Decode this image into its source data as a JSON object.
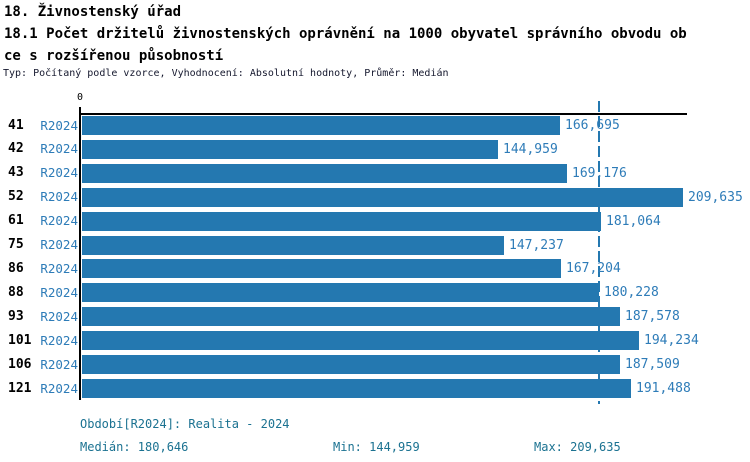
{
  "title": {
    "line1": "18. Živnostenský úřad",
    "line2": "18.1 Počet držitelů živnostenských oprávnění na 1000 obyvatel správního obvodu ob",
    "line3": "ce s rozšířenou působností",
    "meta": "Typ: Počítaný podle vzorce, Vyhodnocení: Absolutní hodnoty, Průměr: Medián"
  },
  "chart_data": {
    "type": "bar",
    "orientation": "horizontal",
    "title": "Počet držitelů živnostenských oprávnění na 1000 obyvatel správního obvodu obce s rozšířenou působností",
    "categories": [
      "41",
      "42",
      "43",
      "52",
      "61",
      "75",
      "86",
      "88",
      "93",
      "101",
      "106",
      "121"
    ],
    "period_label": "R2024",
    "values": [
      166.695,
      144.959,
      169.176,
      209.635,
      181.064,
      147.237,
      167.204,
      180.228,
      187.578,
      194.234,
      187.509,
      191.488
    ],
    "value_labels": [
      "166,695",
      "144,959",
      "169,176",
      "209,635",
      "181,064",
      "147,237",
      "167,204",
      "180,228",
      "187,578",
      "194,234",
      "187,509",
      "191,488"
    ],
    "xlim": [
      0,
      209.635
    ],
    "axis_zero_label": "0",
    "median_value": 180.646,
    "grid": false,
    "legend": false,
    "bar_color": "#2478b0",
    "median_line_color": "#2478b0",
    "category_label_color": "#000000",
    "value_label_color": "#2e7cb8"
  },
  "footer": {
    "period_info": "Období[R2024]: Realita - 2024",
    "median": "Medián: 180,646",
    "min": "Min: 144,959",
    "max": "Max: 209,635"
  }
}
